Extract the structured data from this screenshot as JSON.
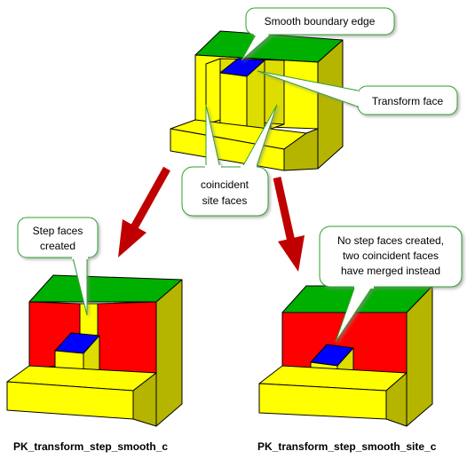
{
  "callouts": {
    "smooth_boundary_edge": "Smooth boundary edge",
    "transform_face": "Transform face",
    "coincident_site_faces": [
      "coincident",
      "site faces"
    ],
    "step_faces_created": [
      "Step faces",
      "created"
    ],
    "no_step_faces": [
      "No step faces created,",
      "two coincident faces",
      "have merged instead"
    ]
  },
  "captions": {
    "left": "PK_transform_step_smooth_c",
    "right": "PK_transform_step_smooth_site_c"
  },
  "colors": {
    "face_yellow": "#ffff00",
    "face_side": "#b5b500",
    "face_green": "#00b000",
    "face_blue": "#0000ff",
    "face_red": "#ff0000",
    "arrow_red": "#c00000",
    "callout_fill": "#ffffff",
    "callout_border": "#33a033"
  }
}
